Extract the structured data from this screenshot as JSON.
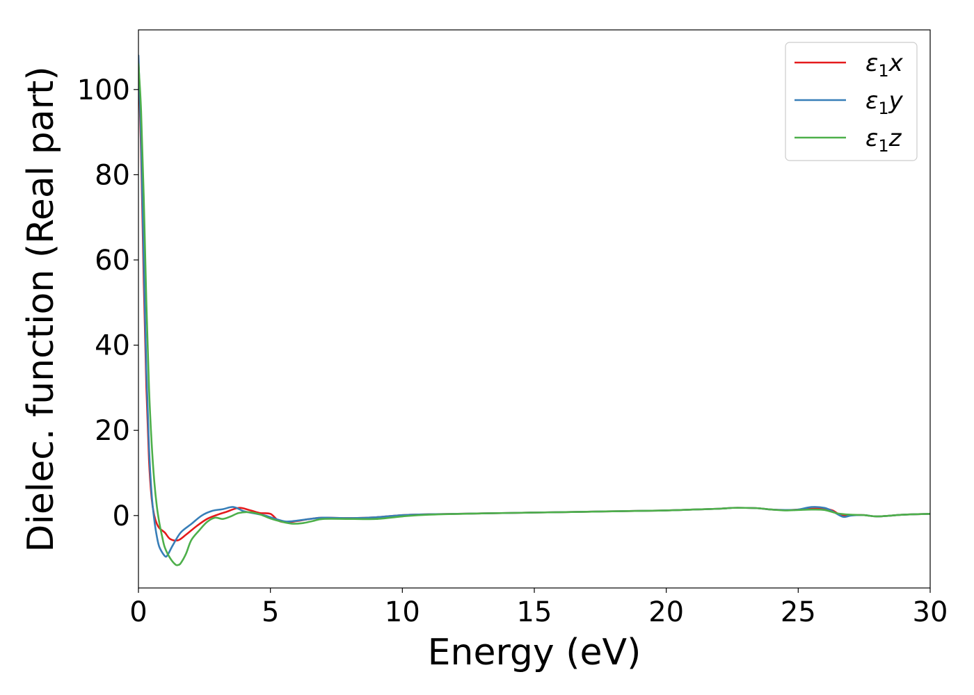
{
  "chart_data": {
    "type": "line",
    "title": "",
    "xlabel": "Energy (eV)",
    "ylabel": "Dielec. function (Real part)",
    "xlim": [
      0,
      30
    ],
    "ylim": [
      -17,
      114
    ],
    "xticks": [
      0,
      5,
      10,
      15,
      20,
      25,
      30
    ],
    "yticks": [
      0,
      20,
      40,
      60,
      80,
      100
    ],
    "grid": false,
    "legend": "top-right",
    "series": [
      {
        "name": "ε₁x",
        "legend_main": "ε",
        "legend_sub": "1",
        "legend_var": "x",
        "color": "#e41a1c",
        "x": [
          0,
          0.1,
          0.2,
          0.3,
          0.4,
          0.5,
          0.6,
          0.7,
          0.8,
          1.0,
          1.2,
          1.5,
          1.8,
          2.2,
          2.6,
          3.0,
          3.3,
          3.8,
          4.2,
          4.6,
          5.0,
          5.3,
          5.6,
          6.0,
          6.5,
          7.0,
          8.0,
          9.0,
          10.0,
          11.0,
          13.0,
          15.0,
          17.0,
          19.0,
          20.0,
          21.0,
          22.0,
          22.5,
          23.0,
          23.5,
          24.0,
          24.5,
          25.0,
          25.5,
          26.0,
          26.3,
          26.6,
          27.0,
          27.5,
          28.0,
          29.0,
          30.0
        ],
        "values": [
          107,
          85,
          55,
          30,
          13,
          4,
          0,
          -2,
          -3,
          -4,
          -5.5,
          -5.8,
          -4.5,
          -2.5,
          -0.8,
          0.2,
          0.8,
          1.8,
          1.3,
          0.6,
          0.4,
          -1.2,
          -1.6,
          -1.3,
          -0.8,
          -0.5,
          -0.6,
          -0.4,
          0.1,
          0.3,
          0.5,
          0.7,
          0.9,
          1.1,
          1.2,
          1.4,
          1.6,
          1.8,
          1.8,
          1.7,
          1.4,
          1.3,
          1.4,
          1.6,
          1.6,
          1.2,
          0.2,
          0.1,
          0.1,
          -0.2,
          0.2,
          0.4
        ]
      },
      {
        "name": "ε₁y",
        "legend_main": "ε",
        "legend_sub": "1",
        "legend_var": "y",
        "color": "#377eb8",
        "x": [
          0,
          0.1,
          0.2,
          0.3,
          0.4,
          0.5,
          0.6,
          0.7,
          0.8,
          1.0,
          1.1,
          1.3,
          1.6,
          2.0,
          2.4,
          2.8,
          3.2,
          3.6,
          4.0,
          4.4,
          4.8,
          5.2,
          5.6,
          6.0,
          6.5,
          7.0,
          8.0,
          9.0,
          10.0,
          11.0,
          13.0,
          15.0,
          17.0,
          19.0,
          20.0,
          21.0,
          22.0,
          22.5,
          23.0,
          23.5,
          24.0,
          24.5,
          25.0,
          25.5,
          26.0,
          26.3,
          26.7,
          27.0,
          27.5,
          28.0,
          29.0,
          30.0
        ],
        "values": [
          108,
          88,
          60,
          34,
          16,
          5,
          -1,
          -5,
          -7.5,
          -9.5,
          -9.3,
          -7,
          -4,
          -2,
          0,
          1.1,
          1.5,
          2,
          1,
          0.5,
          0,
          -0.8,
          -1.4,
          -1.2,
          -0.8,
          -0.5,
          -0.6,
          -0.4,
          0.1,
          0.3,
          0.5,
          0.7,
          0.9,
          1.1,
          1.2,
          1.4,
          1.6,
          1.8,
          1.8,
          1.7,
          1.4,
          1.3,
          1.4,
          2,
          1.8,
          1.0,
          -0.3,
          0.0,
          0.1,
          -0.2,
          0.2,
          0.4
        ]
      },
      {
        "name": "ε₁z",
        "legend_main": "ε",
        "legend_sub": "1",
        "legend_var": "z",
        "color": "#4daf4a",
        "x": [
          0,
          0.1,
          0.2,
          0.3,
          0.4,
          0.5,
          0.6,
          0.7,
          0.8,
          0.9,
          1.0,
          1.2,
          1.4,
          1.5,
          1.6,
          1.8,
          2.0,
          2.3,
          2.6,
          2.9,
          3.2,
          3.5,
          3.8,
          4.2,
          4.6,
          5.0,
          5.4,
          5.8,
          6.2,
          6.6,
          7.0,
          8.0,
          9.0,
          10.0,
          11.0,
          13.0,
          15.0,
          17.0,
          19.0,
          20.0,
          21.0,
          22.0,
          22.5,
          23.0,
          23.5,
          24.0,
          24.5,
          25.0,
          25.5,
          26.0,
          26.5,
          27.0,
          27.5,
          28.0,
          29.0,
          30.0
        ],
        "values": [
          106,
          95,
          75,
          50,
          30,
          17,
          8,
          2,
          -2,
          -5,
          -7.5,
          -10,
          -11.5,
          -11.6,
          -11.2,
          -9,
          -5.8,
          -3.5,
          -1.5,
          -0.5,
          -0.8,
          -0.2,
          0.6,
          0.8,
          0.3,
          -0.7,
          -1.4,
          -1.9,
          -1.8,
          -1.3,
          -0.8,
          -0.8,
          -0.8,
          -0.2,
          0.2,
          0.5,
          0.7,
          0.9,
          1.1,
          1.2,
          1.4,
          1.6,
          1.8,
          1.8,
          1.7,
          1.4,
          1.2,
          1.3,
          1.4,
          1.3,
          0.5,
          0.2,
          0.1,
          -0.2,
          0.2,
          0.4
        ]
      }
    ]
  }
}
